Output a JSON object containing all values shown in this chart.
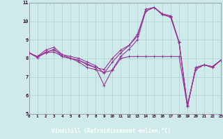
{
  "xlabel": "Windchill (Refroidissement éolien,°C)",
  "xlim": [
    0,
    23
  ],
  "ylim": [
    5,
    11
  ],
  "yticks": [
    5,
    6,
    7,
    8,
    9,
    10,
    11
  ],
  "xticks": [
    0,
    1,
    2,
    3,
    4,
    5,
    6,
    7,
    8,
    9,
    10,
    11,
    12,
    13,
    14,
    15,
    16,
    17,
    18,
    19,
    20,
    21,
    22,
    23
  ],
  "bg_color": "#ceeaea",
  "grid_color": "#aad4d4",
  "line_color": "#993399",
  "xlabel_bg": "#660066",
  "xlabel_fg": "#ffffff",
  "lines": [
    [
      8.3,
      8.1,
      8.3,
      8.5,
      8.1,
      8.0,
      7.8,
      7.5,
      7.4,
      7.25,
      7.35,
      8.0,
      8.1,
      8.1,
      8.1,
      8.1,
      8.1,
      8.1,
      8.1,
      5.4,
      7.5,
      7.65,
      7.55,
      7.9
    ],
    [
      8.3,
      8.1,
      8.45,
      8.6,
      8.2,
      8.0,
      7.9,
      7.7,
      7.5,
      7.4,
      8.0,
      8.45,
      8.7,
      9.3,
      10.55,
      10.75,
      10.4,
      10.3,
      8.9,
      5.4,
      7.5,
      7.65,
      7.55,
      7.9
    ],
    [
      8.3,
      8.05,
      8.35,
      8.45,
      8.2,
      8.1,
      8.0,
      7.8,
      7.6,
      7.2,
      7.8,
      8.3,
      8.7,
      9.2,
      10.65,
      10.75,
      10.35,
      10.25,
      8.85,
      5.5,
      7.4,
      7.65,
      7.5,
      7.9
    ],
    [
      8.3,
      8.05,
      8.3,
      8.35,
      8.1,
      8.0,
      7.9,
      7.65,
      7.5,
      6.55,
      7.4,
      8.1,
      8.5,
      9.0,
      10.55,
      10.75,
      10.4,
      10.2,
      8.85,
      5.4,
      7.5,
      7.65,
      7.55,
      7.9
    ]
  ]
}
